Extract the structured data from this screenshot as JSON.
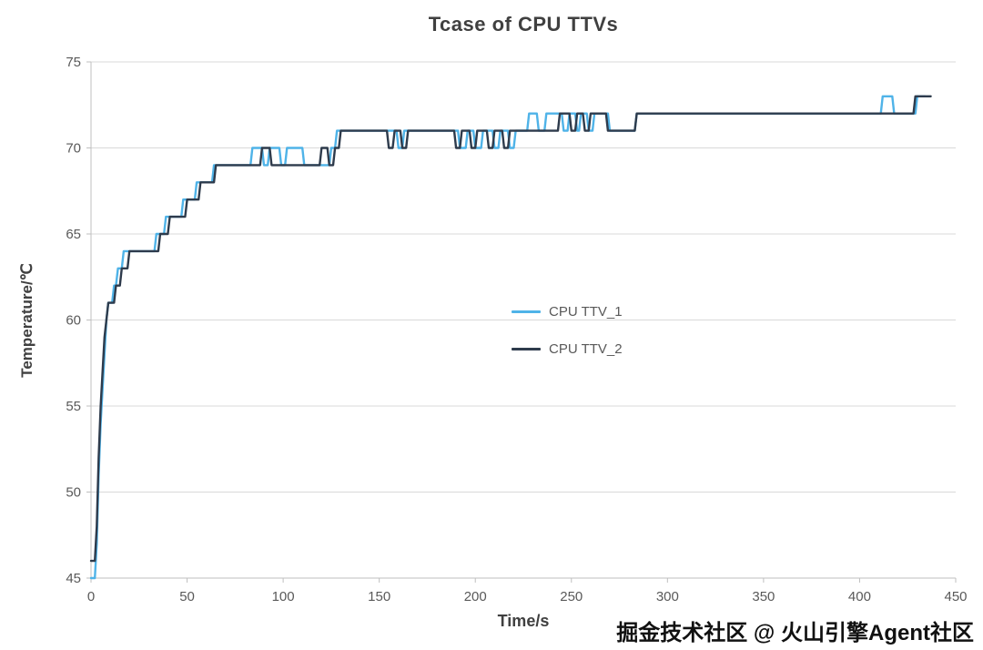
{
  "header": {
    "title": "Tcase of CPU TTVs"
  },
  "axes": {
    "x_label": "Time/s",
    "y_label": "Temperature/℃"
  },
  "watermark": "掘金技术社区 @ 火山引擎Agent社区",
  "colors": {
    "gridline": "#d9d9d9",
    "axis": "#bfbfbf",
    "tick_label": "#595959",
    "title": "#404040",
    "series1": "#4fb3e8",
    "series2": "#2e3b4c"
  },
  "chart_data": {
    "type": "line",
    "title": "Tcase of CPU TTVs",
    "xlabel": "Time/s",
    "ylabel": "Temperature/°C",
    "xlim": [
      0,
      450
    ],
    "ylim": [
      45,
      75
    ],
    "xticks": [
      0,
      50,
      100,
      150,
      200,
      250,
      300,
      350,
      400,
      450
    ],
    "yticks": [
      45,
      50,
      55,
      60,
      65,
      70,
      75
    ],
    "grid": "horizontal",
    "legend_position": "inside-center-right",
    "series": [
      {
        "name": "CPU TTV_1",
        "color": "#4fb3e8",
        "points": [
          [
            0,
            45
          ],
          [
            2,
            45
          ],
          [
            3,
            47
          ],
          [
            4,
            51
          ],
          [
            5,
            54
          ],
          [
            6,
            56
          ],
          [
            7,
            58
          ],
          [
            8,
            60
          ],
          [
            9,
            61
          ],
          [
            11,
            61
          ],
          [
            12,
            62
          ],
          [
            13,
            62
          ],
          [
            14,
            63
          ],
          [
            16,
            63
          ],
          [
            17,
            64
          ],
          [
            33,
            64
          ],
          [
            34,
            65
          ],
          [
            38,
            65
          ],
          [
            39,
            66
          ],
          [
            47,
            66
          ],
          [
            48,
            67
          ],
          [
            54,
            67
          ],
          [
            55,
            68
          ],
          [
            63,
            68
          ],
          [
            64,
            69
          ],
          [
            83,
            69
          ],
          [
            84,
            70
          ],
          [
            89,
            70
          ],
          [
            90,
            69
          ],
          [
            92,
            69
          ],
          [
            93,
            70
          ],
          [
            98,
            70
          ],
          [
            99,
            69
          ],
          [
            101,
            69
          ],
          [
            102,
            70
          ],
          [
            110,
            70
          ],
          [
            111,
            69
          ],
          [
            124,
            69
          ],
          [
            125,
            70
          ],
          [
            127,
            70
          ],
          [
            128,
            71
          ],
          [
            159,
            71
          ],
          [
            160,
            70
          ],
          [
            162,
            70
          ],
          [
            163,
            71
          ],
          [
            191,
            71
          ],
          [
            192,
            70
          ],
          [
            195,
            70
          ],
          [
            196,
            71
          ],
          [
            199,
            71
          ],
          [
            200,
            70
          ],
          [
            203,
            70
          ],
          [
            204,
            71
          ],
          [
            209,
            71
          ],
          [
            210,
            70
          ],
          [
            212,
            70
          ],
          [
            213,
            71
          ],
          [
            217,
            71
          ],
          [
            218,
            70
          ],
          [
            220,
            70
          ],
          [
            221,
            71
          ],
          [
            227,
            71
          ],
          [
            228,
            72
          ],
          [
            232,
            72
          ],
          [
            233,
            71
          ],
          [
            236,
            71
          ],
          [
            237,
            72
          ],
          [
            245,
            72
          ],
          [
            246,
            71
          ],
          [
            248,
            71
          ],
          [
            249,
            72
          ],
          [
            252,
            72
          ],
          [
            253,
            71
          ],
          [
            254,
            71
          ],
          [
            255,
            72
          ],
          [
            258,
            72
          ],
          [
            259,
            71
          ],
          [
            261,
            71
          ],
          [
            262,
            72
          ],
          [
            269,
            72
          ],
          [
            270,
            71
          ],
          [
            283,
            71
          ],
          [
            284,
            72
          ],
          [
            411,
            72
          ],
          [
            412,
            73
          ],
          [
            417,
            73
          ],
          [
            418,
            72
          ],
          [
            429,
            72
          ],
          [
            430,
            73
          ],
          [
            434,
            73
          ]
        ]
      },
      {
        "name": "CPU TTV_2",
        "color": "#2e3b4c",
        "points": [
          [
            0,
            46
          ],
          [
            2,
            46
          ],
          [
            3,
            48
          ],
          [
            4,
            52
          ],
          [
            5,
            55
          ],
          [
            6,
            57
          ],
          [
            7,
            59
          ],
          [
            8,
            60
          ],
          [
            9,
            61
          ],
          [
            12,
            61
          ],
          [
            13,
            62
          ],
          [
            15,
            62
          ],
          [
            16,
            63
          ],
          [
            19,
            63
          ],
          [
            20,
            64
          ],
          [
            35,
            64
          ],
          [
            36,
            65
          ],
          [
            40,
            65
          ],
          [
            41,
            66
          ],
          [
            49,
            66
          ],
          [
            50,
            67
          ],
          [
            56,
            67
          ],
          [
            57,
            68
          ],
          [
            64,
            68
          ],
          [
            65,
            69
          ],
          [
            88,
            69
          ],
          [
            89,
            70
          ],
          [
            93,
            70
          ],
          [
            94,
            69
          ],
          [
            119,
            69
          ],
          [
            120,
            70
          ],
          [
            123,
            70
          ],
          [
            124,
            69
          ],
          [
            126,
            69
          ],
          [
            127,
            70
          ],
          [
            129,
            70
          ],
          [
            130,
            71
          ],
          [
            154,
            71
          ],
          [
            155,
            70
          ],
          [
            157,
            70
          ],
          [
            158,
            71
          ],
          [
            161,
            71
          ],
          [
            162,
            70
          ],
          [
            164,
            70
          ],
          [
            165,
            71
          ],
          [
            189,
            71
          ],
          [
            190,
            70
          ],
          [
            192,
            70
          ],
          [
            193,
            71
          ],
          [
            197,
            71
          ],
          [
            198,
            70
          ],
          [
            200,
            70
          ],
          [
            201,
            71
          ],
          [
            206,
            71
          ],
          [
            207,
            70
          ],
          [
            209,
            70
          ],
          [
            210,
            71
          ],
          [
            214,
            71
          ],
          [
            215,
            70
          ],
          [
            217,
            70
          ],
          [
            218,
            71
          ],
          [
            243,
            71
          ],
          [
            244,
            72
          ],
          [
            249,
            72
          ],
          [
            250,
            71
          ],
          [
            252,
            71
          ],
          [
            253,
            72
          ],
          [
            256,
            72
          ],
          [
            257,
            71
          ],
          [
            259,
            71
          ],
          [
            260,
            72
          ],
          [
            268,
            72
          ],
          [
            269,
            71
          ],
          [
            283,
            71
          ],
          [
            284,
            72
          ],
          [
            428,
            72
          ],
          [
            429,
            73
          ],
          [
            437,
            73
          ]
        ]
      }
    ]
  }
}
